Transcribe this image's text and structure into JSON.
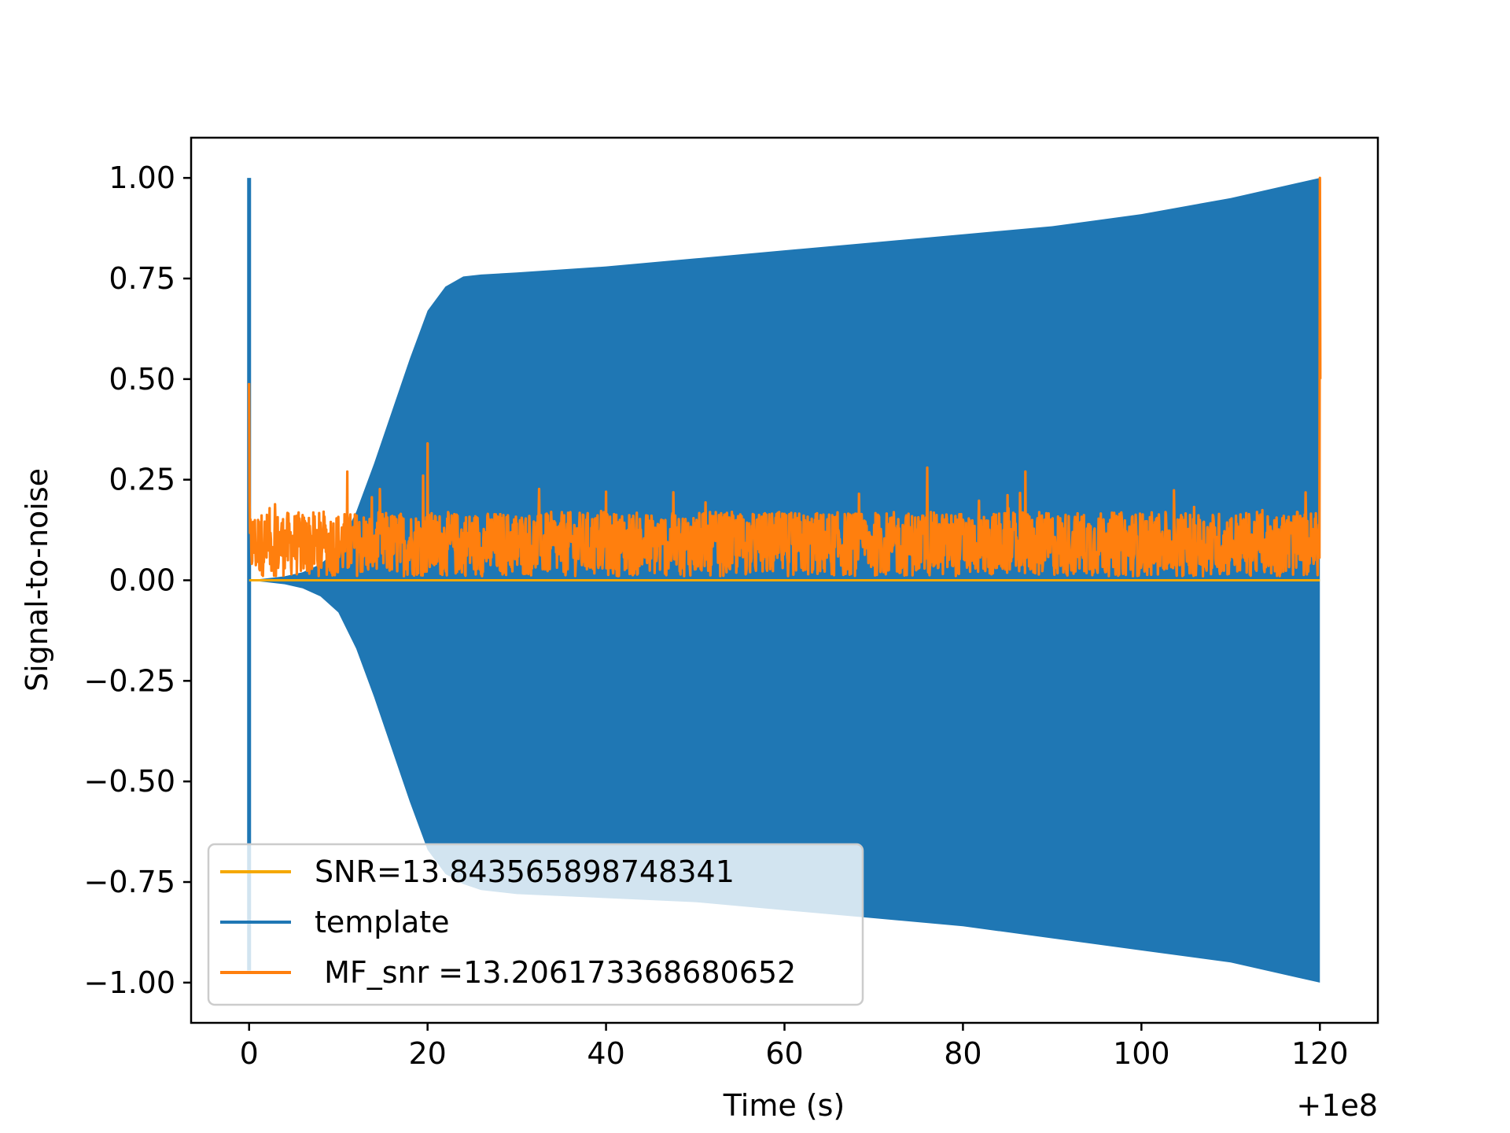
{
  "chart_data": {
    "type": "line",
    "title": "",
    "xlabel": "Time (s)",
    "ylabel": "Signal-to-noise",
    "x_offset_label": "+1e8",
    "xlim": [
      -6.5,
      126.5
    ],
    "ylim": [
      -1.1,
      1.1
    ],
    "xticks": [
      0,
      20,
      40,
      60,
      80,
      100,
      120
    ],
    "xtick_labels": [
      "0",
      "20",
      "40",
      "60",
      "80",
      "100",
      "120"
    ],
    "yticks": [
      1.0,
      0.75,
      0.5,
      0.25,
      0.0,
      -0.25,
      -0.5,
      -0.75,
      -1.0
    ],
    "ytick_labels": [
      "1.00",
      "0.75",
      "0.50",
      "0.25",
      "0.00",
      "−0.25",
      "−0.50",
      "−0.75",
      "−1.00"
    ],
    "grid": false,
    "legend_position": "lower-left",
    "series": [
      {
        "name": "SNR=13.843565898748341",
        "color": "#f5a800",
        "values_x": [
          0,
          120
        ],
        "values_y": [
          0,
          0
        ]
      },
      {
        "name": "template",
        "color": "#1f77b4",
        "envelope_x": [
          0,
          2,
          4,
          6,
          8,
          10,
          12,
          14,
          16,
          18,
          20,
          22,
          24,
          26,
          30,
          40,
          50,
          60,
          70,
          80,
          90,
          100,
          110,
          120
        ],
        "envelope_upper": [
          0.0,
          0.005,
          0.01,
          0.02,
          0.04,
          0.08,
          0.17,
          0.29,
          0.42,
          0.55,
          0.67,
          0.73,
          0.755,
          0.76,
          0.765,
          0.78,
          0.8,
          0.82,
          0.84,
          0.86,
          0.88,
          0.91,
          0.95,
          1.0
        ],
        "envelope_lower": [
          0.0,
          -0.005,
          -0.01,
          -0.02,
          -0.04,
          -0.08,
          -0.17,
          -0.29,
          -0.42,
          -0.55,
          -0.67,
          -0.73,
          -0.755,
          -0.77,
          -0.78,
          -0.79,
          -0.8,
          -0.82,
          -0.84,
          -0.86,
          -0.89,
          -0.92,
          -0.95,
          -1.0
        ],
        "spike_at_zero": [
          -0.97,
          1.0
        ]
      },
      {
        "name": " MF_snr =13.206173368680652",
        "color": "#ff7f0e",
        "baseline_mean": 0.09,
        "peaks": [
          {
            "x": 0,
            "y": 0.49
          },
          {
            "x": 11,
            "y": 0.27
          },
          {
            "x": 20,
            "y": 0.34
          },
          {
            "x": 19.5,
            "y": 0.26
          },
          {
            "x": 40,
            "y": 0.22
          },
          {
            "x": 76,
            "y": 0.28
          },
          {
            "x": 87,
            "y": 0.27
          },
          {
            "x": 120,
            "y": 1.0
          }
        ]
      }
    ]
  }
}
